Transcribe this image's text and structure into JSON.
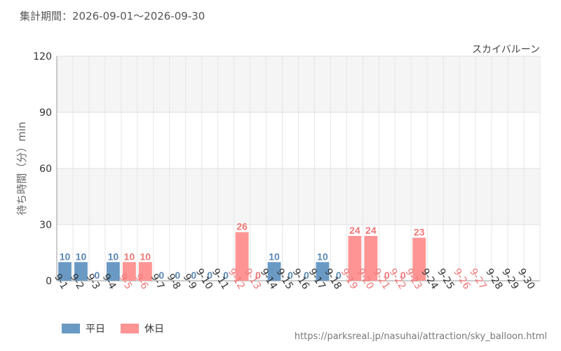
{
  "header": {
    "period_label": "集計期間：2026-09-01～2026-09-30"
  },
  "footer": {
    "url": "https://parksreal.jp/nasuhai/attraction/sky_balloon.html"
  },
  "colors": {
    "weekday": "#6a9ac4",
    "holiday": "#ff9494",
    "holiday_text": "#ee7777",
    "weekday_text": "#5a88b5"
  },
  "chart_data": {
    "type": "bar",
    "series_label": "スカイバルーン",
    "ylabel": "待ち時間（分）min",
    "ylim": [
      0,
      120
    ],
    "yticks": [
      0,
      30,
      60,
      90,
      120
    ],
    "grid": true,
    "legend_position": "bottom-left",
    "legend": [
      {
        "key": "weekday",
        "label": "平日"
      },
      {
        "key": "holiday",
        "label": "休日"
      }
    ],
    "categories": [
      "9-1",
      "9-2",
      "9-3",
      "9-4",
      "9-5",
      "9-6",
      "9-7",
      "9-8",
      "9-9",
      "9-10",
      "9-11",
      "9-12",
      "9-13",
      "9-14",
      "9-15",
      "9-16",
      "9-17",
      "9-18",
      "9-19",
      "9-20",
      "9-21",
      "9-22",
      "9-23",
      "9-24",
      "9-25",
      "9-26",
      "9-27",
      "9-28",
      "9-29",
      "9-30"
    ],
    "values": [
      10,
      10,
      0,
      10,
      10,
      10,
      0,
      0,
      0,
      0,
      0,
      26,
      0,
      10,
      0,
      0,
      10,
      0,
      24,
      24,
      0,
      0,
      23,
      null,
      null,
      null,
      null,
      null,
      null,
      null
    ],
    "day_type": [
      "weekday",
      "weekday",
      "weekday",
      "weekday",
      "holiday",
      "holiday",
      "weekday",
      "weekday",
      "weekday",
      "weekday",
      "weekday",
      "holiday",
      "holiday",
      "weekday",
      "weekday",
      "weekday",
      "weekday",
      "weekday",
      "holiday",
      "holiday",
      "holiday",
      "holiday",
      "holiday",
      "weekday",
      "weekday",
      "holiday",
      "holiday",
      "weekday",
      "weekday",
      "weekday"
    ]
  }
}
